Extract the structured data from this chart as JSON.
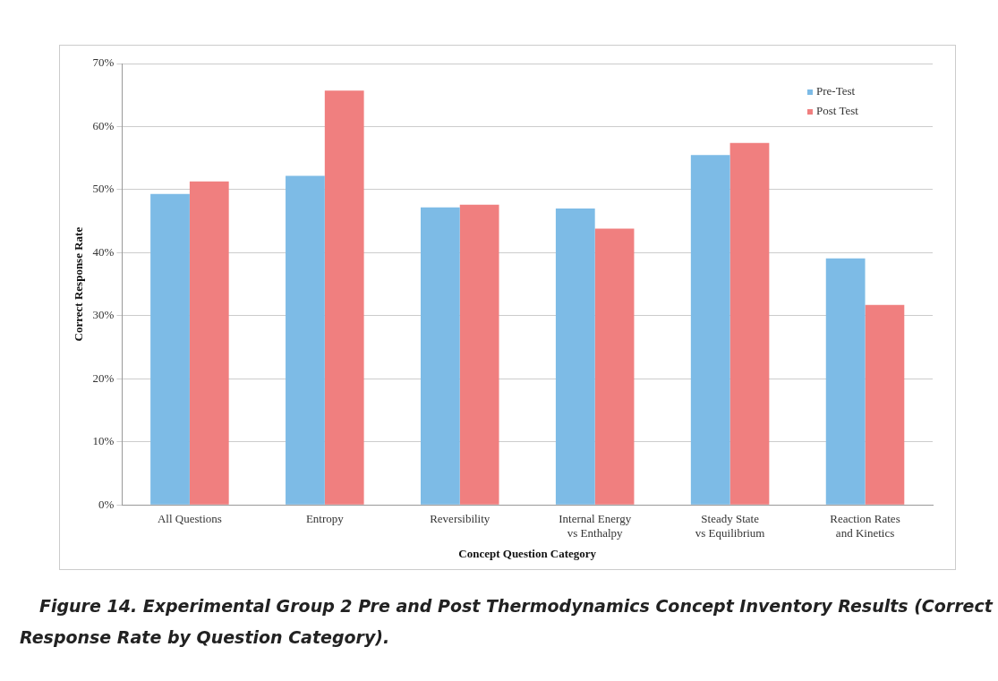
{
  "chart_data": {
    "type": "bar",
    "xlabel": "Concept Question Category",
    "ylabel": "Correct Response Rate",
    "categories": [
      "All Questions",
      "Entropy",
      "Reversibility",
      "Internal Energy vs Enthalpy",
      "Steady State vs Equilibrium",
      "Reaction Rates and Kinetics"
    ],
    "series": [
      {
        "name": "Pre-Test",
        "color": "#7dbbe6",
        "values": [
          49.3,
          52.2,
          47.2,
          47.0,
          55.5,
          39.1
        ]
      },
      {
        "name": "Post Test",
        "color": "#f07f7f",
        "values": [
          51.3,
          65.7,
          47.6,
          43.8,
          57.4,
          31.7
        ]
      }
    ],
    "ylim": [
      0,
      70
    ],
    "yticks": [
      {
        "value": 0,
        "label": "0%"
      },
      {
        "value": 10,
        "label": "10%"
      },
      {
        "value": 20,
        "label": "20%"
      },
      {
        "value": 30,
        "label": "30%"
      },
      {
        "value": 40,
        "label": "40%"
      },
      {
        "value": 50,
        "label": "50%"
      },
      {
        "value": 60,
        "label": "60%"
      },
      {
        "value": 70,
        "label": "70%"
      }
    ],
    "grid": "y",
    "legend": "top right",
    "annotations": [
      "Figure 14. Experimental Group 2 Pre and Post Thermodynamics Concept Inventory Results (Correct Response Rate by Question Category)."
    ]
  }
}
